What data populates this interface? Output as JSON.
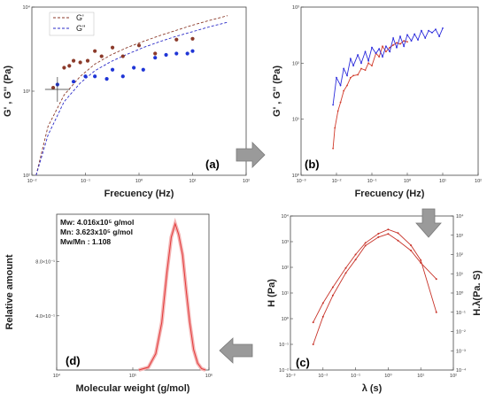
{
  "chart_data": [
    {
      "id": "a",
      "type": "scatter",
      "tag": "(a)",
      "xlabel": "Frecuency (Hz)",
      "ylabel": "G' , G'' (Pa)",
      "x_scale": "log",
      "y_scale": "log",
      "xlim": [
        0.01,
        100
      ],
      "ylim": [
        100,
        10000
      ],
      "x_ticks": [
        "10⁻²",
        "10⁻¹",
        "10⁰",
        "10¹",
        "10²"
      ],
      "y_ticks": [
        "10²",
        "10³",
        "10⁴"
      ],
      "legend": {
        "placement": "top-left",
        "entries": [
          "G'",
          "G''"
        ]
      },
      "series": [
        {
          "name": "G'",
          "color": "#8b3a2a",
          "style": "dashed-line",
          "x": [
            0.012,
            0.02,
            0.04,
            0.08,
            0.15,
            0.3,
            0.6,
            1.2,
            2.5,
            5,
            10,
            20,
            45
          ],
          "y": [
            100,
            380,
            900,
            1500,
            2100,
            2700,
            3300,
            3900,
            4600,
            5300,
            6100,
            6900,
            7900
          ]
        },
        {
          "name": "G''",
          "color": "#2b2bc8",
          "style": "dashed-line",
          "x": [
            0.012,
            0.02,
            0.04,
            0.08,
            0.15,
            0.3,
            0.6,
            1.2,
            2.5,
            5,
            10,
            20,
            45
          ],
          "y": [
            100,
            300,
            750,
            1250,
            1750,
            2250,
            2750,
            3300,
            3900,
            4500,
            5100,
            5800,
            6600
          ]
        },
        {
          "name": "G' points",
          "color": "#8b3a2a",
          "style": "markers",
          "x": [
            0.025,
            0.04,
            0.05,
            0.06,
            0.08,
            0.11,
            0.15,
            0.2,
            0.32,
            0.5,
            1.0,
            2.0,
            5.0,
            10
          ],
          "y": [
            1100,
            1900,
            2000,
            2300,
            2200,
            2300,
            3000,
            2600,
            3300,
            2600,
            3500,
            2800,
            4100,
            4200
          ]
        },
        {
          "name": "G'' points",
          "color": "#1f35d6",
          "style": "markers",
          "x": [
            0.03,
            0.06,
            0.1,
            0.15,
            0.25,
            0.32,
            0.5,
            0.8,
            1.2,
            2.0,
            3.2,
            5.0,
            8.0,
            10
          ],
          "y": [
            1200,
            1300,
            1500,
            1500,
            1400,
            1800,
            1500,
            1900,
            1800,
            2500,
            2700,
            2800,
            2800,
            3000
          ]
        }
      ]
    },
    {
      "id": "b",
      "type": "line",
      "tag": "(b)",
      "xlabel": "Frecuency (Hz)",
      "ylabel": "G' , G'' (Pa)",
      "x_scale": "log",
      "y_scale": "log",
      "xlim": [
        0.001,
        100
      ],
      "ylim": [
        1,
        1000
      ],
      "x_ticks": [
        "10⁻³",
        "10⁻²",
        "10⁻¹",
        "10⁰",
        "10¹",
        "10²"
      ],
      "y_ticks": [
        "10⁰",
        "10¹",
        "10²",
        "10³"
      ],
      "series": [
        {
          "name": "",
          "color": "#d13a2a",
          "x": [
            0.008,
            0.009,
            0.011,
            0.013,
            0.016,
            0.02,
            0.025,
            0.03,
            0.04,
            0.05,
            0.065,
            0.08,
            0.1,
            0.13,
            0.16,
            0.2,
            0.25,
            0.32,
            0.4,
            0.5,
            0.63,
            0.8,
            1.0
          ],
          "y": [
            3,
            7,
            14,
            20,
            32,
            40,
            55,
            60,
            62,
            80,
            75,
            100,
            90,
            150,
            130,
            200,
            160,
            190,
            210,
            230,
            220,
            250,
            240
          ]
        },
        {
          "name": "",
          "color": "#2b2bdc",
          "x": [
            0.008,
            0.01,
            0.013,
            0.016,
            0.02,
            0.025,
            0.03,
            0.04,
            0.05,
            0.065,
            0.08,
            0.1,
            0.13,
            0.16,
            0.2,
            0.25,
            0.32,
            0.4,
            0.5,
            0.63,
            0.8,
            1.0,
            1.3,
            1.6,
            2.0,
            2.5,
            3.2,
            4,
            5,
            6.3,
            8,
            10
          ],
          "y": [
            18,
            55,
            40,
            80,
            60,
            120,
            90,
            140,
            100,
            160,
            110,
            190,
            150,
            180,
            130,
            200,
            160,
            280,
            190,
            300,
            200,
            320,
            250,
            330,
            260,
            380,
            280,
            380,
            350,
            400,
            300,
            420
          ]
        }
      ]
    },
    {
      "id": "c",
      "type": "line",
      "tag": "(c)",
      "xlabel": "λ (s)",
      "ylabel": "H (Pa)",
      "ylabel2": "H.λ(Pa. S)",
      "x_scale": "log",
      "y_scale": "log",
      "xlim": [
        0.001,
        100
      ],
      "ylim": [
        0.01,
        10000
      ],
      "y2lim": [
        0.0001,
        10000
      ],
      "x_ticks": [
        "10⁻³",
        "10⁻²",
        "10⁻¹",
        "10⁰",
        "10¹",
        "10²"
      ],
      "y_ticks": [
        "10⁻²",
        "10⁻¹",
        "10⁰",
        "10¹",
        "10²",
        "10³",
        "10⁴"
      ],
      "y2_ticks": [
        "10⁻⁴",
        "10⁻³",
        "10⁻²",
        "10⁻¹",
        "10⁰",
        "10¹",
        "10²",
        "10³",
        "10⁴"
      ],
      "series": [
        {
          "name": "H",
          "color": "#c8342a",
          "x": [
            0.005,
            0.01,
            0.02,
            0.05,
            0.1,
            0.2,
            0.5,
            1.0,
            2.0,
            5.0,
            10,
            30
          ],
          "y": [
            0.1,
            1.2,
            8,
            60,
            200,
            700,
            1500,
            2000,
            1100,
            450,
            150,
            35
          ]
        },
        {
          "name": "H.λ",
          "color": "#c8342a",
          "x": [
            0.005,
            0.01,
            0.02,
            0.05,
            0.1,
            0.2,
            0.5,
            1.0,
            2.0,
            5.0,
            10,
            30
          ],
          "y": [
            0.03,
            0.3,
            2,
            20,
            100,
            400,
            1200,
            2000,
            1300,
            300,
            50,
            0.1
          ]
        }
      ]
    },
    {
      "id": "d",
      "type": "line",
      "tag": "(d)",
      "xlabel": "Molecular  weight (g/mol)",
      "ylabel": "Relative amount",
      "x_scale": "log",
      "xlim": [
        10000,
        1000000
      ],
      "ylim": [
        0,
        1.15
      ],
      "x_ticks": [
        "10⁴",
        "10⁵",
        "10⁶"
      ],
      "y_ticks": [
        "4.0×10⁻¹",
        "8.0×10⁻¹"
      ],
      "annotations": [
        "Mw: 4.016x10⁵ g/mol",
        "Mn: 3.623x10⁵ g/mol",
        "Mw/Mn : 1.108"
      ],
      "series": [
        {
          "name": "",
          "color": "#e23a3a",
          "x": [
            120000,
            160000,
            200000,
            240000,
            280000,
            320000,
            360000,
            400000,
            450000,
            500000,
            560000,
            630000,
            710000,
            800000,
            900000
          ],
          "y": [
            0.0,
            0.02,
            0.12,
            0.35,
            0.72,
            0.98,
            1.08,
            1.0,
            0.85,
            0.6,
            0.35,
            0.15,
            0.05,
            0.01,
            0.0
          ]
        }
      ]
    }
  ],
  "arrows": {
    "color": "#8c8c8c"
  }
}
